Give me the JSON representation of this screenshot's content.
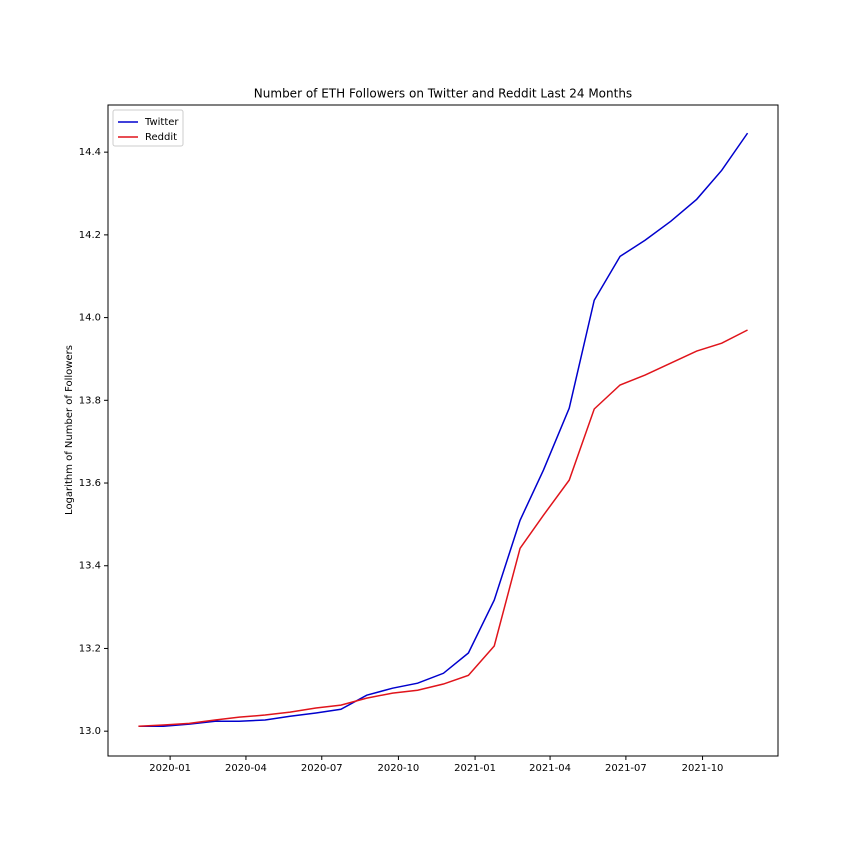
{
  "chart_data": {
    "type": "line",
    "title": "Number of ETH Followers on Twitter and Reddit Last 24 Months",
    "y_label": "Logarithm of Number of Followers",
    "x": [
      "2019-11",
      "2019-12",
      "2020-01",
      "2020-02",
      "2020-03",
      "2020-04",
      "2020-05",
      "2020-06",
      "2020-07",
      "2020-08",
      "2020-09",
      "2020-10",
      "2020-11",
      "2020-12",
      "2021-01",
      "2021-02",
      "2021-03",
      "2021-04",
      "2021-05",
      "2021-06",
      "2021-07",
      "2021-08",
      "2021-09",
      "2021-10",
      "2021-11"
    ],
    "series": [
      {
        "name": "Twitter",
        "color": "#0000cd",
        "values": [
          13.012,
          13.012,
          13.017,
          13.024,
          13.024,
          13.027,
          13.036,
          13.044,
          13.053,
          13.087,
          13.104,
          13.116,
          13.14,
          13.189,
          13.317,
          13.51,
          13.631,
          13.781,
          14.042,
          14.148,
          14.187,
          14.233,
          14.286,
          14.356,
          14.446
        ]
      },
      {
        "name": "Reddit",
        "color": "#e0141b",
        "values": [
          13.012,
          13.015,
          13.019,
          13.027,
          13.034,
          13.039,
          13.046,
          13.056,
          13.063,
          13.08,
          13.092,
          13.099,
          13.114,
          13.135,
          13.206,
          13.442,
          13.522,
          13.607,
          13.779,
          13.837,
          13.861,
          13.89,
          13.919,
          13.938,
          13.97
        ]
      }
    ],
    "xticks": [
      "2020-01",
      "2020-04",
      "2020-07",
      "2020-10",
      "2021-01",
      "2021-04",
      "2021-07",
      "2021-10"
    ],
    "ylim": [
      12.94,
      14.514
    ],
    "yticks": [
      {
        "value": 13,
        "label": "13.0"
      },
      {
        "value": 13.2,
        "label": "13.2"
      },
      {
        "value": 13.4,
        "label": "13.4"
      },
      {
        "value": 13.6,
        "label": "13.6"
      },
      {
        "value": 13.8,
        "label": "13.8"
      },
      {
        "value": 14,
        "label": "14.0"
      },
      {
        "value": 14.2,
        "label": "14.2"
      },
      {
        "value": 14.4,
        "label": "14.4"
      }
    ],
    "legend": "upper left"
  }
}
